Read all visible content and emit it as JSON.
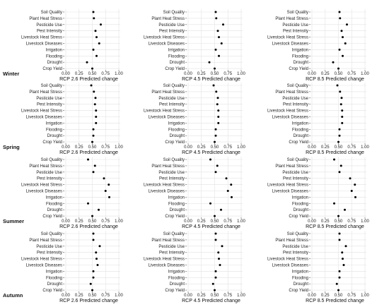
{
  "categories": [
    "Soil Quality",
    "Plant Heat Stress",
    "Pesticide Use",
    "Pest Intensity",
    "Livestock Heat Stress",
    "Livestock Diseases",
    "Irrigation",
    "Flooding",
    "Drought",
    "Crop Yield"
  ],
  "x_ticks": [
    "0.00",
    "0.25",
    "0.50",
    "0.75",
    "1.00"
  ],
  "chart_data": {
    "type": "scatter",
    "xlim": [
      0,
      1
    ],
    "grid": true,
    "legend": "none",
    "point_color": "#000000",
    "panels": [
      {
        "season": "Winter",
        "xlabel": "RCP 2.6 Predicted change",
        "values": [
          0.52,
          0.53,
          0.66,
          0.56,
          0.58,
          0.63,
          0.52,
          0.58,
          0.4,
          0.5
        ]
      },
      {
        "season": "",
        "xlabel": "RCP 4.5 Predicted change",
        "values": [
          0.52,
          0.53,
          0.66,
          0.56,
          0.58,
          0.63,
          0.52,
          0.58,
          0.4,
          0.5
        ]
      },
      {
        "season": "",
        "xlabel": "RCP 8.5 Predicted change",
        "values": [
          0.52,
          0.53,
          0.66,
          0.56,
          0.58,
          0.63,
          0.52,
          0.58,
          0.4,
          0.5
        ]
      },
      {
        "season": "Spring",
        "xlabel": "RCP 2.6 Predicted change",
        "values": [
          0.48,
          0.53,
          0.56,
          0.55,
          0.57,
          0.57,
          0.57,
          0.52,
          0.52,
          0.5
        ]
      },
      {
        "season": "",
        "xlabel": "RCP 4.5 Predicted change",
        "values": [
          0.48,
          0.53,
          0.56,
          0.55,
          0.57,
          0.57,
          0.57,
          0.52,
          0.52,
          0.5
        ]
      },
      {
        "season": "",
        "xlabel": "RCP 8.5 Predicted change",
        "values": [
          0.48,
          0.53,
          0.56,
          0.55,
          0.57,
          0.57,
          0.57,
          0.52,
          0.52,
          0.5
        ]
      },
      {
        "season": "Summer",
        "xlabel": "RCP 2.6 Predicted change",
        "values": [
          0.42,
          0.55,
          0.52,
          0.72,
          0.81,
          0.75,
          0.82,
          0.42,
          0.62,
          0.5
        ]
      },
      {
        "season": "",
        "xlabel": "RCP 4.5 Predicted change",
        "values": [
          0.42,
          0.55,
          0.52,
          0.72,
          0.81,
          0.75,
          0.82,
          0.42,
          0.62,
          0.5
        ]
      },
      {
        "season": "",
        "xlabel": "RCP 8.5 Predicted change",
        "values": [
          0.42,
          0.55,
          0.52,
          0.72,
          0.81,
          0.75,
          0.82,
          0.42,
          0.62,
          0.5
        ]
      },
      {
        "season": "Autumn",
        "xlabel": "RCP 2.6 Predicted change",
        "values": [
          0.52,
          0.52,
          0.64,
          0.57,
          0.58,
          0.6,
          0.52,
          0.52,
          0.47,
          0.5
        ]
      },
      {
        "season": "",
        "xlabel": "RCP 4.5 Predicted change",
        "values": [
          0.52,
          0.52,
          0.64,
          0.57,
          0.58,
          0.6,
          0.52,
          0.52,
          0.47,
          0.5
        ]
      },
      {
        "season": "",
        "xlabel": "RCP 8.5 Predicted change",
        "values": [
          0.52,
          0.52,
          0.64,
          0.57,
          0.58,
          0.6,
          0.52,
          0.52,
          0.47,
          0.5
        ]
      }
    ]
  }
}
